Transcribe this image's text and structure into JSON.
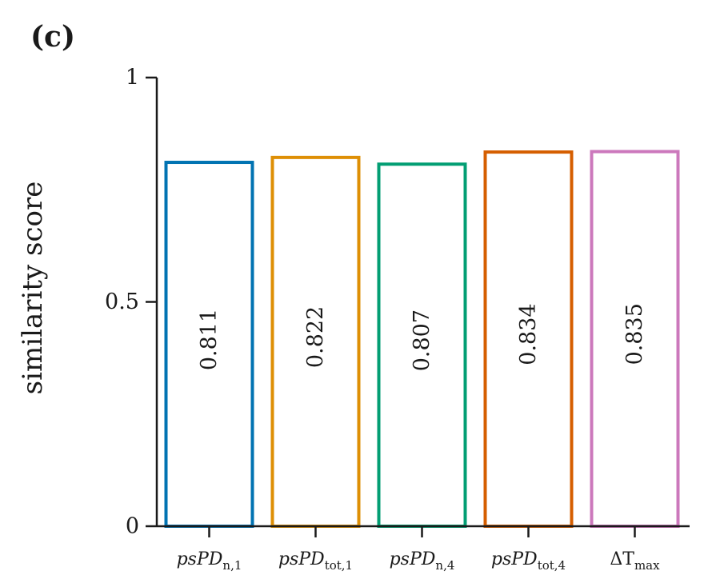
{
  "panel_label": "(c)",
  "chart_data": {
    "type": "bar",
    "title": "",
    "xlabel": "",
    "ylabel": "similarity score",
    "ylim": [
      0,
      1
    ],
    "yticks": [
      {
        "value": 0,
        "label": "0"
      },
      {
        "value": 0.5,
        "label": "0.5"
      },
      {
        "value": 1,
        "label": "1"
      }
    ],
    "categories": [
      {
        "base": "psPD",
        "sub": "n,1"
      },
      {
        "base": "psPD",
        "sub": "tot,1"
      },
      {
        "base": "psPD",
        "sub": "n,4"
      },
      {
        "base": "psPD",
        "sub": "tot,4"
      },
      {
        "base": "ΔT",
        "sub": "max"
      }
    ],
    "values": [
      0.811,
      0.822,
      0.807,
      0.834,
      0.835
    ],
    "value_labels": [
      "0.811",
      "0.822",
      "0.807",
      "0.834",
      "0.835"
    ],
    "bar_style": "outline",
    "colors": [
      "#0173b2",
      "#de8f05",
      "#029e73",
      "#d55e00",
      "#cc78bc"
    ],
    "grid": false
  }
}
